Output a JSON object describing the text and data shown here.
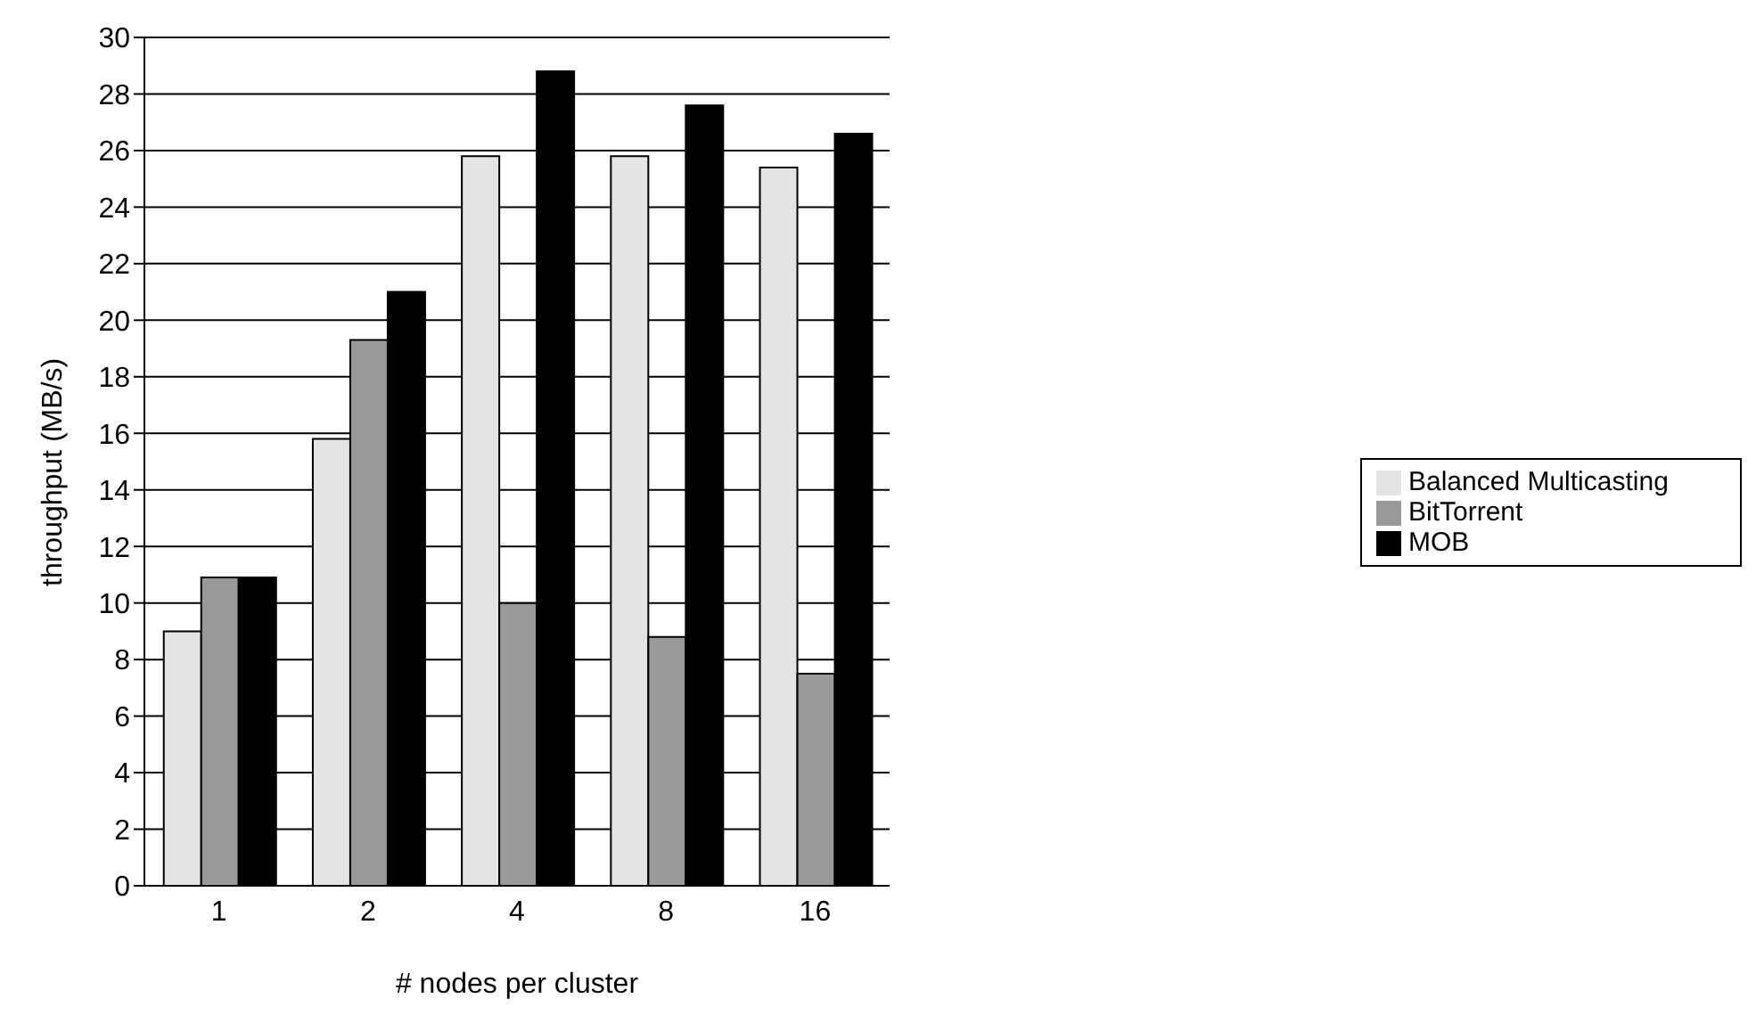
{
  "chart_data": {
    "type": "bar",
    "xlabel": "# nodes per cluster",
    "ylabel": "throughput (MB/s)",
    "categories": [
      "1",
      "2",
      "4",
      "8",
      "16"
    ],
    "series": [
      {
        "name": "Balanced Multicasting",
        "color": "#e4e4e4",
        "values": [
          9.0,
          15.8,
          25.8,
          25.8,
          25.4
        ]
      },
      {
        "name": "BitTorrent",
        "color": "#999999",
        "values": [
          10.9,
          19.3,
          10.0,
          8.8,
          7.5
        ]
      },
      {
        "name": "MOB",
        "color": "#000000",
        "values": [
          10.9,
          21.0,
          28.8,
          27.6,
          26.6
        ]
      }
    ],
    "ylim": [
      0,
      30
    ],
    "yticks": [
      0,
      2,
      4,
      6,
      8,
      10,
      12,
      14,
      16,
      18,
      20,
      22,
      24,
      26,
      28,
      30
    ],
    "grid": "y",
    "legend": "right"
  }
}
